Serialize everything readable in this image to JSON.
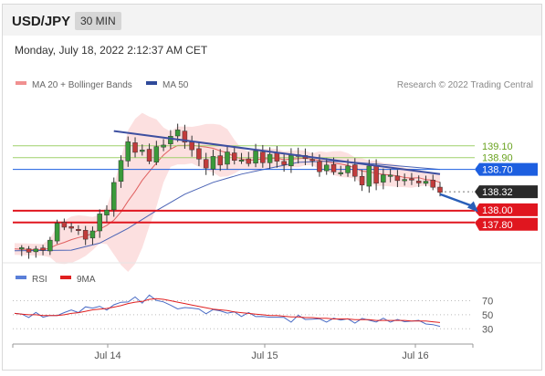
{
  "header": {
    "pair": "USD/JPY",
    "timeframe": "30 MIN",
    "datetime": "Monday, July 18, 2022 2:12:37 AM CET"
  },
  "legend": {
    "ma20_label": "MA 20 + Bollinger Bands",
    "ma50_label": "MA 50",
    "credit": "Research © 2022 Trading Central",
    "rsi_label": "RSI",
    "ma9_label": "9MA"
  },
  "colors": {
    "bull": "#3a9a3a",
    "bear": "#c23b3b",
    "band": "#fcdada",
    "ma20": "#e06060",
    "ma50": "#4a63b5",
    "trendline": "#3d4fa0",
    "support": "#e0161f",
    "pivot": "#1d5fe0",
    "resistance": "#6aa320",
    "last": "#2a2a2a",
    "rsi": "#4a6cc5",
    "rsi_ma": "#e02020"
  },
  "chart_data": [
    {
      "type": "candlestick",
      "instrument": "USD/JPY",
      "ylim": [
        137.1,
        139.7
      ],
      "x_tick_labels": [
        "Jul 14",
        "Jul 15",
        "Jul 16"
      ],
      "levels": [
        {
          "value": 139.1,
          "label": "139.10",
          "kind": "resistance"
        },
        {
          "value": 138.9,
          "label": "138.90",
          "kind": "resistance"
        },
        {
          "value": 138.7,
          "label": "138.70",
          "kind": "pivot"
        },
        {
          "value": 138.32,
          "label": "138.32",
          "kind": "last"
        },
        {
          "value": 138.0,
          "label": "138.00",
          "kind": "support"
        },
        {
          "value": 137.8,
          "label": "137.80",
          "kind": "support"
        }
      ],
      "trendline": {
        "from": [
          14,
          139.35
        ],
        "to": [
          60,
          138.62
        ]
      },
      "close_path": [
        [
          0,
          137.35
        ],
        [
          4,
          137.32
        ],
        [
          6,
          137.75
        ],
        [
          8,
          137.72
        ],
        [
          10,
          137.55
        ],
        [
          11,
          137.65
        ],
        [
          12,
          137.92
        ],
        [
          13,
          138.05
        ],
        [
          14,
          138.45
        ],
        [
          15,
          138.85
        ],
        [
          16,
          139.2
        ],
        [
          17,
          138.95
        ],
        [
          18,
          139.05
        ],
        [
          19,
          138.85
        ],
        [
          20,
          139.05
        ],
        [
          21,
          139.15
        ],
        [
          22,
          139.25
        ],
        [
          23,
          139.35
        ],
        [
          24,
          139.2
        ],
        [
          25,
          139.0
        ],
        [
          26,
          138.88
        ],
        [
          27,
          138.75
        ],
        [
          28,
          138.88
        ],
        [
          29,
          138.8
        ],
        [
          30,
          139.0
        ],
        [
          31,
          138.82
        ],
        [
          32,
          138.9
        ],
        [
          33,
          138.78
        ],
        [
          34,
          139.0
        ],
        [
          35,
          138.85
        ],
        [
          36,
          138.92
        ],
        [
          37,
          138.85
        ],
        [
          38,
          138.8
        ],
        [
          39,
          138.9
        ],
        [
          40,
          138.95
        ],
        [
          41,
          138.88
        ],
        [
          42,
          138.82
        ],
        [
          43,
          138.7
        ],
        [
          44,
          138.75
        ],
        [
          45,
          138.65
        ],
        [
          46,
          138.68
        ],
        [
          47,
          138.72
        ],
        [
          48,
          138.6
        ],
        [
          49,
          138.45
        ],
        [
          50,
          138.72
        ],
        [
          51,
          138.5
        ],
        [
          52,
          138.6
        ],
        [
          53,
          138.58
        ],
        [
          54,
          138.55
        ],
        [
          55,
          138.5
        ],
        [
          56,
          138.52
        ],
        [
          57,
          138.5
        ],
        [
          58,
          138.46
        ],
        [
          59,
          138.42
        ],
        [
          60,
          138.32
        ]
      ],
      "ma50_path": [
        [
          0,
          137.32
        ],
        [
          8,
          137.33
        ],
        [
          12,
          137.45
        ],
        [
          16,
          137.7
        ],
        [
          20,
          138.0
        ],
        [
          24,
          138.28
        ],
        [
          28,
          138.48
        ],
        [
          32,
          138.62
        ],
        [
          36,
          138.72
        ],
        [
          40,
          138.82
        ],
        [
          44,
          138.84
        ],
        [
          48,
          138.82
        ],
        [
          52,
          138.78
        ],
        [
          56,
          138.74
        ],
        [
          60,
          138.7
        ]
      ],
      "projection": {
        "from": [
          60,
          138.28
        ],
        "to": [
          65,
          138.02
        ]
      }
    },
    {
      "type": "line",
      "title": "RSI",
      "ylim": [
        20,
        85
      ],
      "y_tick_labels": [
        "70",
        "50",
        "30"
      ],
      "series": [
        {
          "name": "RSI",
          "values": [
            52,
            50,
            48,
            51,
            49,
            47,
            50,
            53,
            56,
            55,
            59,
            62,
            60,
            58,
            64,
            67,
            70,
            73,
            69,
            76,
            72,
            68,
            63,
            60,
            58,
            62,
            56,
            53,
            57,
            55,
            54,
            52,
            50,
            51,
            49,
            47,
            46,
            48,
            44,
            42,
            47,
            45,
            43,
            44,
            41,
            43,
            45,
            42,
            40,
            44,
            42,
            41,
            43,
            42,
            41,
            42,
            40,
            42,
            38,
            34,
            36
          ]
        },
        {
          "name": "9MA",
          "values": [
            52,
            51,
            50,
            50,
            49,
            49,
            49,
            50,
            52,
            53,
            55,
            57,
            58,
            59,
            61,
            63,
            66,
            68,
            69,
            72,
            73,
            72,
            70,
            68,
            66,
            64,
            62,
            60,
            58,
            57,
            56,
            54,
            53,
            52,
            51,
            50,
            49,
            49,
            48,
            47,
            47,
            46,
            46,
            45,
            45,
            44,
            44,
            44,
            43,
            43,
            43,
            42,
            42,
            42,
            42,
            42,
            41,
            41,
            41,
            40,
            39
          ]
        }
      ]
    }
  ]
}
